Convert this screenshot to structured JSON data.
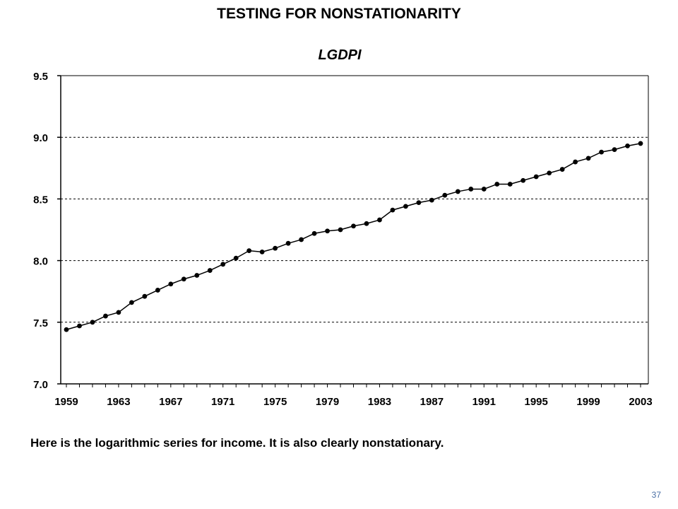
{
  "slide": {
    "title": "TESTING FOR NONSTATIONARITY",
    "caption": "Here is the logarithmic series for income.  It is also clearly nonstationary.",
    "slide_number": "37"
  },
  "chart_data": {
    "type": "line",
    "title": "LGDPI",
    "xlabel": "",
    "ylabel": "",
    "x": [
      1959,
      1960,
      1961,
      1962,
      1963,
      1964,
      1965,
      1966,
      1967,
      1968,
      1969,
      1970,
      1971,
      1972,
      1973,
      1974,
      1975,
      1976,
      1977,
      1978,
      1979,
      1980,
      1981,
      1982,
      1983,
      1984,
      1985,
      1986,
      1987,
      1988,
      1989,
      1990,
      1991,
      1992,
      1993,
      1994,
      1995,
      1996,
      1997,
      1998,
      1999,
      2000,
      2001,
      2002,
      2003
    ],
    "series": [
      {
        "name": "",
        "values": [
          7.44,
          7.47,
          7.5,
          7.55,
          7.58,
          7.66,
          7.71,
          7.76,
          7.81,
          7.85,
          7.88,
          7.92,
          7.97,
          8.02,
          8.08,
          8.07,
          8.1,
          8.14,
          8.17,
          8.22,
          8.24,
          8.25,
          8.28,
          8.3,
          8.33,
          8.41,
          8.44,
          8.47,
          8.49,
          8.53,
          8.56,
          8.58,
          8.58,
          8.62,
          8.62,
          8.65,
          8.68,
          8.71,
          8.74,
          8.8,
          8.83,
          8.88,
          8.9,
          8.93,
          8.95
        ]
      }
    ],
    "x_tick_labels": [
      "1959",
      "1963",
      "1967",
      "1971",
      "1975",
      "1979",
      "1983",
      "1987",
      "1991",
      "1995",
      "1999",
      "2003"
    ],
    "y_tick_labels": [
      "7.0",
      "7.5",
      "8.0",
      "8.5",
      "9.0",
      "9.5"
    ],
    "xlim": [
      1959,
      2003
    ],
    "ylim": [
      7.0,
      9.5
    ],
    "y_ticks": [
      7.0,
      7.5,
      8.0,
      8.5,
      9.0,
      9.5
    ],
    "grid": "horizontal dashed",
    "legend": "none",
    "line_color": "#000000",
    "marker": "filled-circle"
  }
}
